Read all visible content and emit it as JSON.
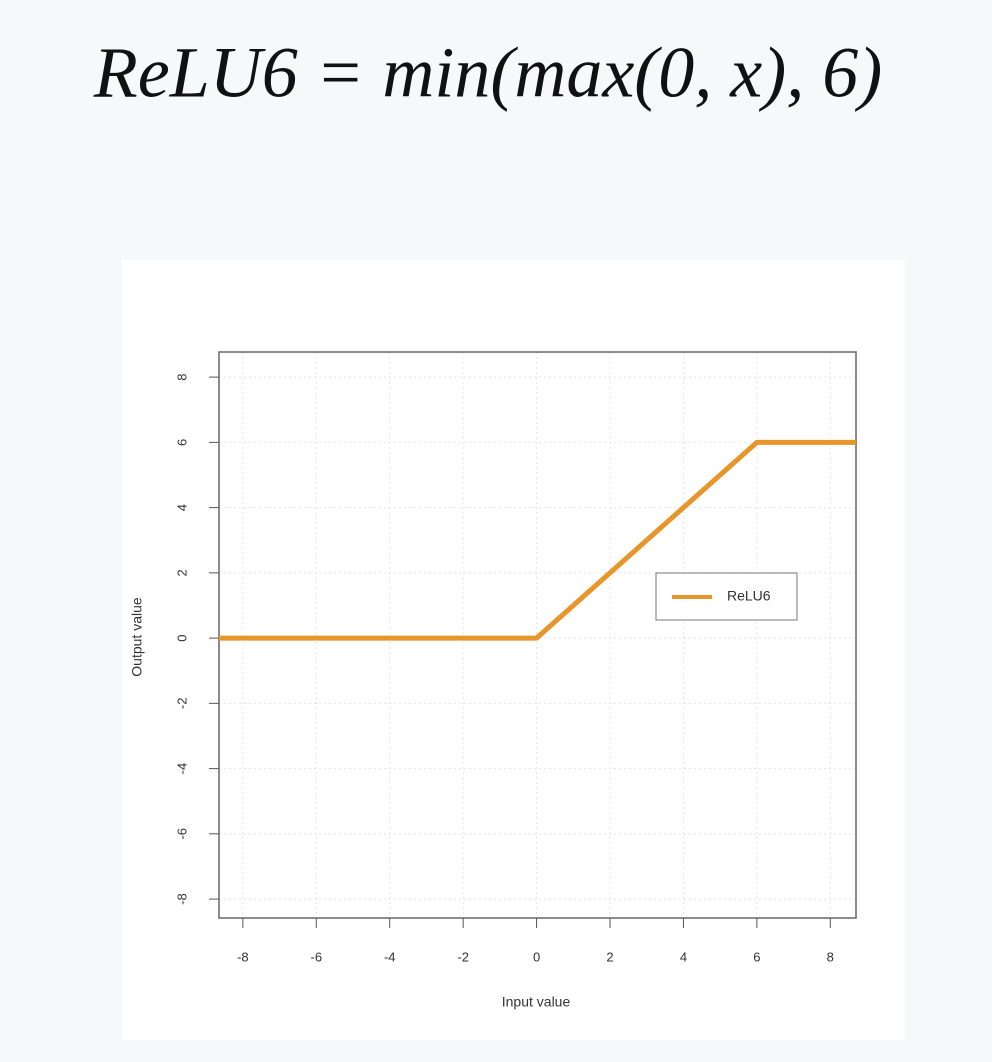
{
  "chart_data": {
    "type": "line",
    "title": "ReLU6 = min(max(0, x), 6)",
    "x_label": "Input value",
    "y_label": "Output value",
    "x": [
      -8.65,
      0,
      6,
      8.7
    ],
    "series": [
      {
        "name": "ReLU6",
        "color": "#e8962a",
        "values": [
          0,
          0,
          6,
          6
        ]
      }
    ],
    "xlim": [
      -8.65,
      8.7
    ],
    "ylim": [
      -8.58,
      8.77
    ],
    "xticks": [
      -8,
      -6,
      -4,
      -2,
      0,
      2,
      4,
      6,
      8
    ],
    "yticks": [
      -8,
      -6,
      -4,
      -2,
      0,
      2,
      4,
      6,
      8
    ],
    "grid": true,
    "legend": "right"
  }
}
